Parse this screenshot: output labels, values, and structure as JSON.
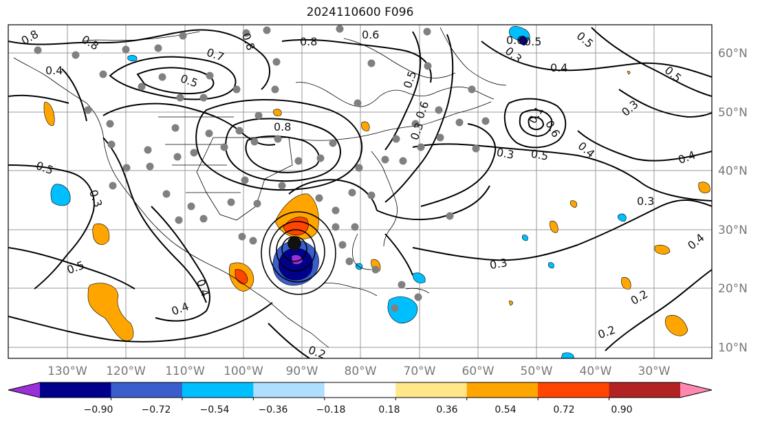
{
  "title": "2024110600 F096",
  "map": {
    "lon_labels": [
      "130°W",
      "120°W",
      "110°W",
      "100°W",
      "90°W",
      "80°W",
      "70°W",
      "60°W",
      "50°W",
      "40°W",
      "30°W"
    ],
    "lat_labels": [
      "60°N",
      "50°N",
      "40°N",
      "30°N",
      "20°N",
      "10°N"
    ],
    "contour_labels": [
      "0.8",
      "0.8",
      "0.8",
      "0.7",
      "0.5",
      "0.6",
      "0.5",
      "0.4",
      "0.6",
      "0.8",
      "0.8",
      "0.5",
      "0.6",
      "0.5",
      "0.3",
      "0.4",
      "0.5",
      "0.3",
      "0.4",
      "0.3",
      "0.5",
      "0.4",
      "0.3",
      "0.3",
      "0.4",
      "0.5",
      "0.3",
      "0.5",
      "0.4",
      "0.2",
      "0.2",
      "0.2",
      "0.4",
      "0.3",
      "0.1",
      "0.6"
    ],
    "colors": {
      "contour": "#000000",
      "grid": "#999999",
      "stations": "#808080",
      "storm_center": "#111111"
    }
  },
  "colorbar": {
    "ticks": [
      "−0.90",
      "−0.72",
      "−0.54",
      "−0.36",
      "−0.18",
      "0.18",
      "0.36",
      "0.54",
      "0.72",
      "0.90"
    ],
    "colors": [
      "#9b30d9",
      "#00008b",
      "#3a5fcd",
      "#00bfff",
      "#afdfff",
      "#ffffff",
      "#ffe78a",
      "#ffa500",
      "#ff4500",
      "#b22222",
      "#ff88b0"
    ]
  }
}
